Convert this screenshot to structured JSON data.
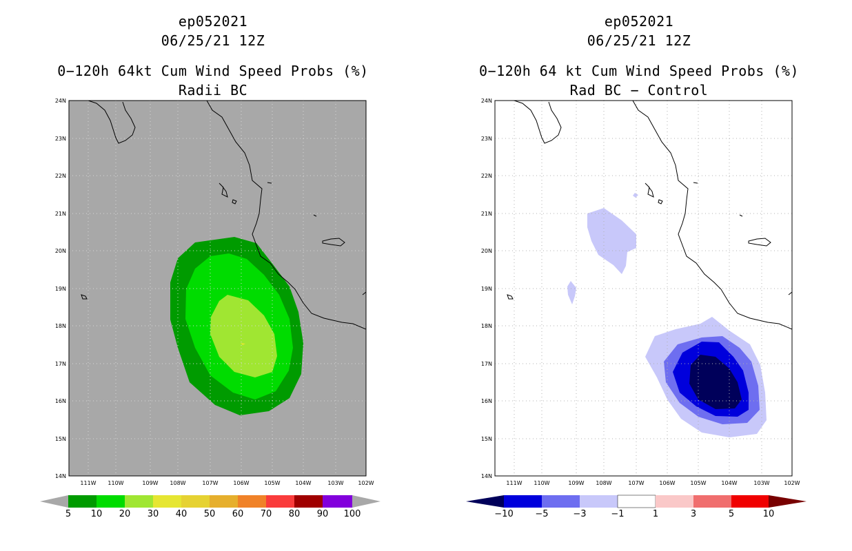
{
  "left": {
    "storm_id": "ep052021",
    "datetime": "06/25/21 12Z",
    "title": "0−120h 64kt Cum Wind Speed Probs (%)",
    "subtitle": "Radii BC",
    "lat_labels": [
      "24N",
      "23N",
      "22N",
      "21N",
      "20N",
      "19N",
      "18N",
      "17N",
      "16N",
      "15N",
      "14N"
    ],
    "lon_labels": [
      "111W",
      "110W",
      "109W",
      "108W",
      "107W",
      "106W",
      "105W",
      "104W",
      "103W",
      "102W"
    ],
    "colorbar": {
      "labels": [
        "5",
        "10",
        "20",
        "30",
        "40",
        "50",
        "60",
        "70",
        "80",
        "90",
        "100"
      ],
      "colors": [
        "#009b00",
        "#00dc00",
        "#a0e632",
        "#e6e632",
        "#e6d232",
        "#e6af2d",
        "#f08228",
        "#fa3c3c",
        "#a00000",
        "#8200dc"
      ],
      "end_color": "#a8a8a8"
    },
    "background": "#a8a8a8"
  },
  "right": {
    "storm_id": "ep052021",
    "datetime": "06/25/21 12Z",
    "title": "0−120h 64 kt Cum Wind Speed Probs (%)",
    "subtitle": "Rad BC − Control",
    "lat_labels": [
      "24N",
      "23N",
      "22N",
      "21N",
      "20N",
      "19N",
      "18N",
      "17N",
      "16N",
      "15N",
      "14N"
    ],
    "lon_labels": [
      "111W",
      "110W",
      "109W",
      "108W",
      "107W",
      "106W",
      "105W",
      "104W",
      "103W",
      "102W"
    ],
    "colorbar": {
      "labels": [
        "−10",
        "−5",
        "−3",
        "−1",
        "1",
        "3",
        "5",
        "10"
      ],
      "colors": [
        "#0000dc",
        "#6e6ef0",
        "#c8c8fa",
        "#ffffff",
        "#fac8c8",
        "#f06e6e",
        "#f00000"
      ],
      "end_low": "#00005a",
      "end_high": "#780000"
    },
    "background": "#ffffff"
  }
}
